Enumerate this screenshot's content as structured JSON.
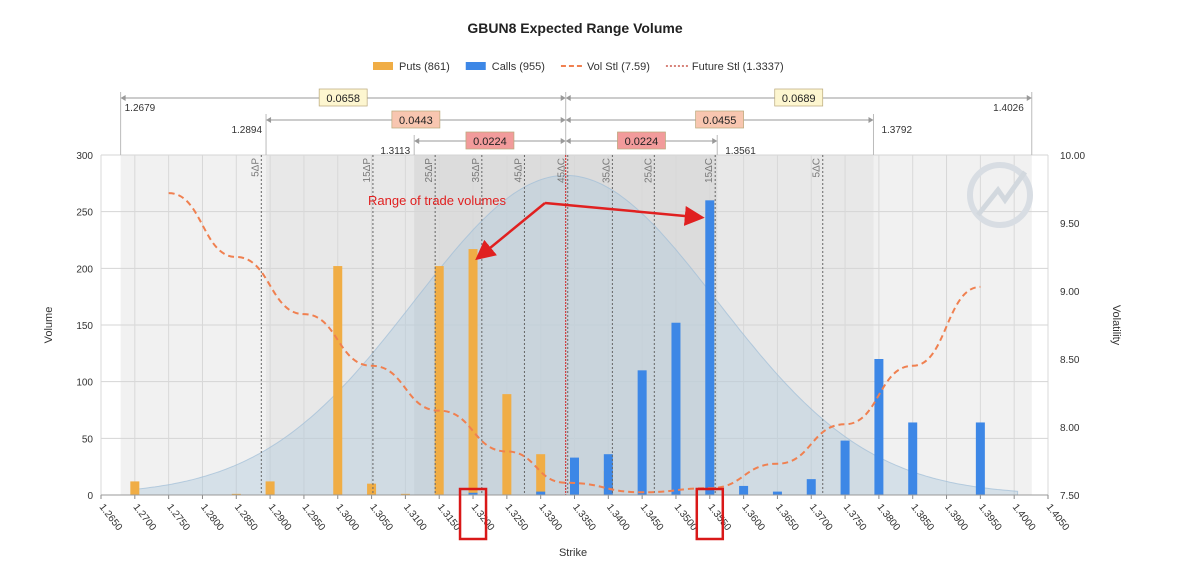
{
  "chart_data": {
    "type": "bar",
    "title": "GBUN8 Expected Range Volume",
    "xlabel": "Strike",
    "ylabel": "Volume",
    "y2label": "Volatility",
    "ylim": [
      0,
      300
    ],
    "y2lim": [
      7.5,
      10.0
    ],
    "xlim": [
      1.265,
      1.405
    ],
    "yticks": [
      "0",
      "50",
      "100",
      "150",
      "200",
      "250",
      "300"
    ],
    "y2ticks": [
      "7.50",
      "8.00",
      "8.50",
      "9.00",
      "9.50",
      "10.00"
    ],
    "xticks": [
      "1.2650",
      "1.2700",
      "1.2750",
      "1.2800",
      "1.2850",
      "1.2900",
      "1.2950",
      "1.3000",
      "1.3050",
      "1.3100",
      "1.3150",
      "1.3200",
      "1.3250",
      "1.3300",
      "1.3350",
      "1.3400",
      "1.3450",
      "1.3500",
      "1.3550",
      "1.3600",
      "1.3650",
      "1.3700",
      "1.3750",
      "1.3800",
      "1.3850",
      "1.3900",
      "1.3950",
      "1.4000",
      "1.4050"
    ],
    "grid": true,
    "legend_position": "top",
    "legend": [
      {
        "label": "Puts (861)",
        "kind": "bar",
        "color": "#f0ad45"
      },
      {
        "label": "Calls (955)",
        "kind": "bar",
        "color": "#3d87e6"
      },
      {
        "label": "Vol Stl (7.59)",
        "kind": "dashed",
        "color": "#f08050"
      },
      {
        "label": "Future Stl (1.3337)",
        "kind": "dotted",
        "color": "#c0392b"
      }
    ],
    "series": [
      {
        "name": "Puts (861)",
        "color": "#f0ad45",
        "points": [
          [
            1.27,
            12
          ],
          [
            1.285,
            1
          ],
          [
            1.29,
            12
          ],
          [
            1.3,
            202
          ],
          [
            1.305,
            10
          ],
          [
            1.31,
            1
          ],
          [
            1.315,
            202
          ],
          [
            1.32,
            217
          ],
          [
            1.325,
            89
          ],
          [
            1.33,
            36
          ],
          [
            1.34,
            21
          ],
          [
            1.38,
            1
          ],
          [
            1.385,
            1
          ]
        ]
      },
      {
        "name": "Calls (955)",
        "color": "#3d87e6",
        "points": [
          [
            1.32,
            2
          ],
          [
            1.33,
            3
          ],
          [
            1.335,
            33
          ],
          [
            1.34,
            36
          ],
          [
            1.345,
            110
          ],
          [
            1.35,
            152
          ],
          [
            1.355,
            260
          ],
          [
            1.36,
            8
          ],
          [
            1.365,
            3
          ],
          [
            1.37,
            14
          ],
          [
            1.375,
            48
          ],
          [
            1.38,
            120
          ],
          [
            1.385,
            64
          ],
          [
            1.395,
            64
          ]
        ]
      },
      {
        "name": "Vol Stl (7.59)",
        "color": "#f08050",
        "axis": "right",
        "x": [
          1.275,
          1.285,
          1.295,
          1.305,
          1.315,
          1.325,
          1.3337,
          1.345,
          1.355,
          1.365,
          1.375,
          1.385,
          1.395
        ],
        "y": [
          9.72,
          9.25,
          8.83,
          8.45,
          8.12,
          7.82,
          7.59,
          7.52,
          7.55,
          7.73,
          8.02,
          8.45,
          9.03
        ]
      }
    ],
    "future_settlement": 1.3337,
    "bell_curve": {
      "mean": 1.3337,
      "sd": 0.0224,
      "peak": 282
    },
    "delta_lines": [
      {
        "label": "5ΔP",
        "x": 1.2887
      },
      {
        "label": "15ΔP",
        "x": 1.3052
      },
      {
        "label": "25ΔP",
        "x": 1.3144
      },
      {
        "label": "35ΔP",
        "x": 1.3213
      },
      {
        "label": "45ΔP",
        "x": 1.3276
      },
      {
        "label": "45ΔC",
        "x": 1.334
      },
      {
        "label": "35ΔC",
        "x": 1.3406
      },
      {
        "label": "25ΔC",
        "x": 1.3468
      },
      {
        "label": "15ΔC",
        "x": 1.3558
      },
      {
        "label": "5ΔC",
        "x": 1.3717
      }
    ],
    "range_bands": [
      {
        "from": 1.2679,
        "to": 1.4026
      },
      {
        "from": 1.2894,
        "to": 1.3792
      },
      {
        "from": 1.3113,
        "to": 1.3561
      }
    ],
    "range_labels": [
      {
        "left": "1.2679",
        "right": "1.4026",
        "from": 1.2679,
        "to": 1.4026,
        "down": "0.0658",
        "up": "0.0689",
        "color": "#fdf6d0"
      },
      {
        "left": "1.2894",
        "right": "1.3792",
        "from": 1.2894,
        "to": 1.3792,
        "down": "0.0443",
        "up": "0.0455",
        "color": "#f8c6b0"
      },
      {
        "left": "1.3113",
        "right": "1.3561",
        "from": 1.3113,
        "to": 1.3561,
        "down": "0.0224",
        "up": "0.0224",
        "color": "#f29b9b"
      }
    ],
    "annotation": {
      "text": "Range of trade volumes",
      "color": "#e02020",
      "targets": [
        [
          1.32,
          210
        ],
        [
          1.355,
          245
        ]
      ]
    },
    "highlighted_ticks": [
      "1.3200",
      "1.3550"
    ]
  }
}
